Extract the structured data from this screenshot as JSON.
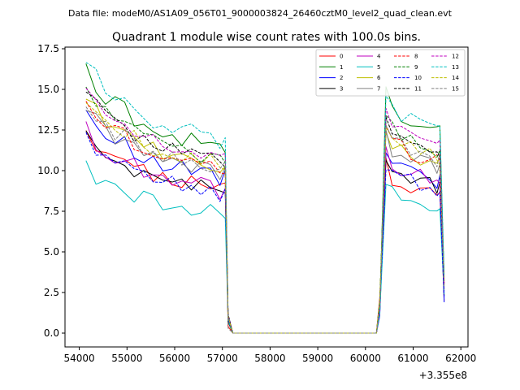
{
  "page": {
    "suptitle": "Data file: modeM0/AS1A09_056T01_9000003824_26460cztM0_level2_quad_clean.evt"
  },
  "chart_data": {
    "type": "line",
    "title": "Quadrant 1 module wise count rates with 100.0s bins.",
    "xlabel": "",
    "ylabel": "",
    "x_offset_text": "+3.355e8",
    "xlim": [
      53700,
      62150
    ],
    "ylim": [
      -0.85,
      17.6
    ],
    "xticks": [
      54000,
      55000,
      56000,
      57000,
      58000,
      59000,
      60000,
      61000,
      62000
    ],
    "xtick_labels": [
      "54000",
      "55000",
      "56000",
      "57000",
      "58000",
      "59000",
      "60000",
      "61000",
      "62000"
    ],
    "yticks": [
      0.0,
      2.5,
      5.0,
      7.5,
      10.0,
      12.5,
      15.0,
      17.5
    ],
    "ytick_labels": [
      "0.0",
      "2.5",
      "5.0",
      "7.5",
      "10.0",
      "12.5",
      "15.0",
      "17.5"
    ],
    "legend": {
      "location": "top-right",
      "columns": 4
    },
    "shape_x": [
      54140,
      54350,
      54550,
      54750,
      54950,
      55150,
      55350,
      55550,
      55750,
      55950,
      56150,
      56350,
      56550,
      56750,
      56950,
      57060,
      57120,
      57220,
      60230,
      60300,
      60430,
      60560,
      60750,
      60950,
      61150,
      61350,
      61500,
      61560,
      61650
    ],
    "shape": [
      1.0,
      0.94,
      0.9,
      0.87,
      0.86,
      0.82,
      0.8,
      0.78,
      0.77,
      0.76,
      0.75,
      0.74,
      0.73,
      0.72,
      0.7,
      0.72,
      0.07,
      0.0,
      0.0,
      0.1,
      1.0,
      0.93,
      0.91,
      0.89,
      0.88,
      0.86,
      0.84,
      0.85,
      0.18
    ],
    "series": [
      {
        "name": "0",
        "color": "#ff0000",
        "dash": "solid",
        "pre": 12.4,
        "post": 10.3,
        "end": 2.0,
        "seed": 1
      },
      {
        "name": "1",
        "color": "#008000",
        "dash": "solid",
        "pre": 16.1,
        "post": 14.7,
        "end": 3.2,
        "seed": 2
      },
      {
        "name": "2",
        "color": "#0000ff",
        "dash": "solid",
        "pre": 13.6,
        "post": 11.0,
        "end": 1.9,
        "seed": 3
      },
      {
        "name": "3",
        "color": "#000000",
        "dash": "solid",
        "pre": 12.2,
        "post": 10.7,
        "end": 2.3,
        "seed": 4
      },
      {
        "name": "4",
        "color": "#bf00bf",
        "dash": "solid",
        "pre": 12.5,
        "post": 11.0,
        "end": 2.6,
        "seed": 5
      },
      {
        "name": "5",
        "color": "#00bfbf",
        "dash": "solid",
        "pre": 10.3,
        "post": 9.2,
        "end": 2.4,
        "seed": 6
      },
      {
        "name": "6",
        "color": "#bfbf00",
        "dash": "solid",
        "pre": 14.5,
        "post": 12.3,
        "end": 2.9,
        "seed": 7
      },
      {
        "name": "7",
        "color": "#808080",
        "dash": "solid",
        "pre": 14.0,
        "post": 12.0,
        "end": 2.7,
        "seed": 8
      },
      {
        "name": "8",
        "color": "#ff0000",
        "dash": "dashed",
        "pre": 14.2,
        "post": 12.5,
        "end": 3.0,
        "seed": 9
      },
      {
        "name": "9",
        "color": "#008000",
        "dash": "dashed",
        "pre": 15.0,
        "post": 13.5,
        "end": 3.4,
        "seed": 10
      },
      {
        "name": "10",
        "color": "#0000ff",
        "dash": "dashed",
        "pre": 12.0,
        "post": 10.5,
        "end": 2.2,
        "seed": 11
      },
      {
        "name": "11",
        "color": "#000000",
        "dash": "dashed",
        "pre": 14.8,
        "post": 13.0,
        "end": 3.1,
        "seed": 12
      },
      {
        "name": "12",
        "color": "#bf00bf",
        "dash": "dashed",
        "pre": 15.3,
        "post": 13.8,
        "end": 3.0,
        "seed": 13
      },
      {
        "name": "13",
        "color": "#00bfbf",
        "dash": "dashed",
        "pre": 16.8,
        "post": 14.6,
        "end": 3.6,
        "seed": 14
      },
      {
        "name": "14",
        "color": "#bfbf00",
        "dash": "dashed",
        "pre": 14.6,
        "post": 12.8,
        "end": 3.2,
        "seed": 15
      },
      {
        "name": "15",
        "color": "#808080",
        "dash": "dashed",
        "pre": 14.3,
        "post": 12.7,
        "end": 3.0,
        "seed": 16
      }
    ]
  }
}
